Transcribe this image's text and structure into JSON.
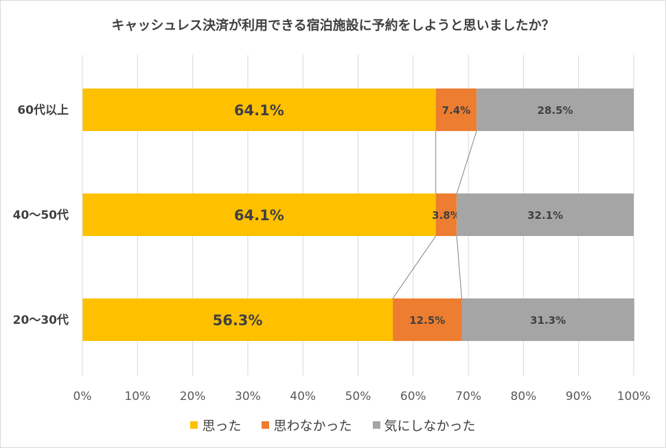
{
  "chart_data": {
    "type": "bar",
    "orientation": "horizontal",
    "stacked": true,
    "percent": true,
    "title": "キャッシュレス決済が利用できる宿泊施設に予約をしようと思いましたか？",
    "categories": [
      "60代以上",
      "40～50代",
      "20～30代"
    ],
    "series": [
      {
        "name": "思った",
        "values": [
          64.1,
          64.1,
          56.3
        ],
        "labels": [
          "64.1%",
          "64.1%",
          "56.3%"
        ],
        "color": "#ffc000"
      },
      {
        "name": "思わなかった",
        "values": [
          7.4,
          3.8,
          12.5
        ],
        "labels": [
          "7.4%",
          "3.8%",
          "12.5%"
        ],
        "color": "#ed7d31"
      },
      {
        "name": "気にしなかった",
        "values": [
          28.5,
          32.1,
          31.3
        ],
        "labels": [
          "28.5%",
          "32.1%",
          "31.3%"
        ],
        "color": "#a5a5a5"
      }
    ],
    "xlim": [
      0,
      100
    ],
    "xticks": [
      "0%",
      "10%",
      "20%",
      "30%",
      "40%",
      "50%",
      "60%",
      "70%",
      "80%",
      "90%",
      "100%"
    ],
    "grid": true,
    "series_lines": true,
    "legend_position": "bottom"
  }
}
